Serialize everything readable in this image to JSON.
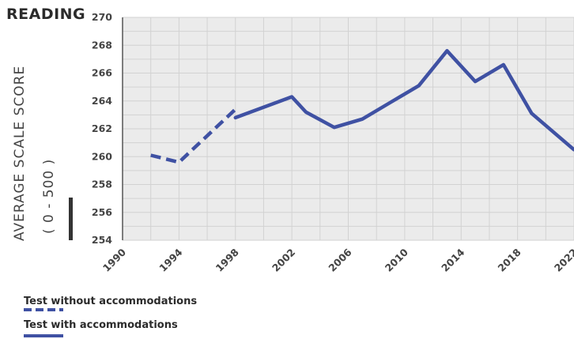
{
  "chart_data": {
    "type": "line",
    "title": "READING",
    "ylabel_line1": "AVERAGE  SCALE SCORE",
    "ylabel_line2": "( 0 - 500 )",
    "xlabel": "",
    "xlim": [
      1990,
      2022
    ],
    "ylim": [
      254,
      270
    ],
    "x_ticks": [
      1990,
      1994,
      1998,
      2002,
      2006,
      2010,
      2014,
      2018,
      2022
    ],
    "y_ticks": [
      254,
      256,
      258,
      260,
      262,
      264,
      266,
      268,
      270
    ],
    "grid": true,
    "legend_position": "bottom-left",
    "color": "#3f51a3",
    "series": [
      {
        "name": "Test without accommodations",
        "style": "dashed",
        "x": [
          1992,
          1994,
          1998
        ],
        "y": [
          260.1,
          259.6,
          263.4
        ]
      },
      {
        "name": "Test with accommodations",
        "style": "solid",
        "x": [
          1998,
          2002,
          2003,
          2005,
          2007,
          2009,
          2011,
          2013,
          2015,
          2017,
          2019,
          2022
        ],
        "y": [
          262.8,
          264.3,
          263.2,
          262.1,
          262.7,
          263.9,
          265.1,
          267.6,
          265.4,
          266.6,
          263.1,
          260.5
        ]
      }
    ]
  }
}
